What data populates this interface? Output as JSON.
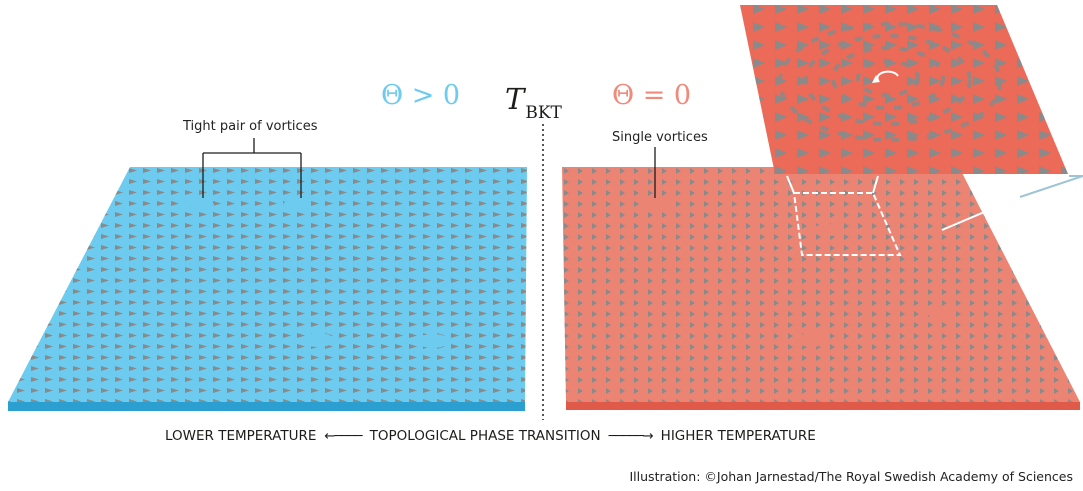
{
  "labels": {
    "theta_left": "Θ > 0",
    "theta_right": "Θ = 0",
    "transition_symbol": "T",
    "transition_subscript": "BKT",
    "callout_left": "Tight pair of vortices",
    "callout_right": "Single vortices",
    "lower_temperature": "LOWER TEMPERATURE",
    "phase_transition": "TOPOLOGICAL PHASE TRANSITION",
    "higher_temperature": "HIGHER TEMPERATURE",
    "credit": "Illustration: ©Johan Jarnestad/The Royal Swedish Academy of Sciences"
  },
  "colors": {
    "cold_surface": "#6ccbee",
    "cold_edge": "#2a9fd0",
    "hot_surface": "#ec8474",
    "hot_edge": "#e05a4a",
    "zoom_surface": "#ec6a58",
    "arrow_color": "#8a8a8a"
  }
}
